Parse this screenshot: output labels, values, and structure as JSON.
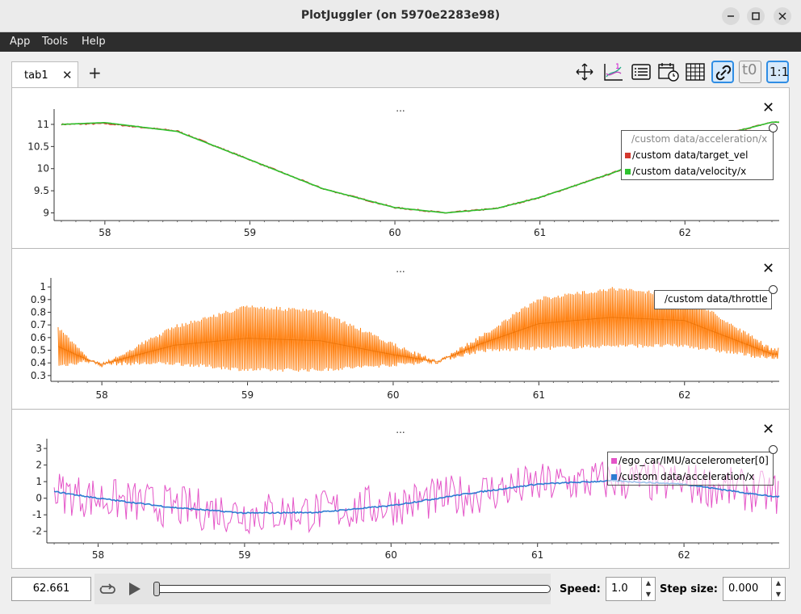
{
  "window": {
    "title": "PlotJuggler (on 5970e2283e98)"
  },
  "menu": {
    "app": "App",
    "tools": "Tools",
    "help": "Help"
  },
  "tabs": {
    "tab1": "tab1",
    "close": "✕",
    "add": "+"
  },
  "toolbar": {
    "t0": "t0",
    "ratio": "1:1",
    "layout_badge": "1"
  },
  "plots": [
    {
      "title": "...",
      "close": "✕",
      "legend_header": "/custom data/acceleration/x",
      "legend": [
        "/custom data/target_vel",
        "/custom data/velocity/x"
      ],
      "colors": [
        "#d3382e",
        "#2ec22e"
      ],
      "yticks": [
        "11",
        "10.5",
        "10",
        "9.5",
        "9"
      ],
      "xticks": [
        "58",
        "59",
        "60",
        "61",
        "62"
      ]
    },
    {
      "title": "...",
      "close": "✕",
      "legend": [
        "/custom data/throttle"
      ],
      "colors": [
        "#ff7f0e"
      ],
      "yticks": [
        "1",
        "0.9",
        "0.8",
        "0.7",
        "0.6",
        "0.5",
        "0.4",
        "0.3"
      ],
      "xticks": [
        "58",
        "59",
        "60",
        "61",
        "62"
      ]
    },
    {
      "title": "...",
      "close": "✕",
      "legend": [
        "/ego_car/IMU/accelerometer[0]",
        "/custom data/acceleration/x"
      ],
      "colors": [
        "#e455c8",
        "#2c7bd1"
      ],
      "yticks": [
        "3",
        "2",
        "1",
        "0",
        "-1",
        "-2"
      ],
      "xticks": [
        "58",
        "59",
        "60",
        "61",
        "62"
      ]
    }
  ],
  "chart_data": [
    {
      "type": "line",
      "x_range": [
        57.65,
        62.65
      ],
      "ylim": [
        8.9,
        11.2
      ],
      "series": [
        {
          "name": "/custom data/target_vel",
          "x": [
            57.7,
            58.0,
            58.5,
            59.0,
            59.5,
            60.0,
            60.35,
            60.7,
            61.0,
            61.5,
            62.0,
            62.6
          ],
          "values": [
            11.0,
            11.02,
            10.85,
            10.2,
            9.55,
            9.12,
            9.0,
            9.1,
            9.35,
            9.9,
            10.55,
            11.05
          ]
        },
        {
          "name": "/custom data/velocity/x",
          "x": [
            57.7,
            58.0,
            58.5,
            59.0,
            59.5,
            60.0,
            60.35,
            60.7,
            61.0,
            61.5,
            62.0,
            62.6
          ],
          "values": [
            11.0,
            11.04,
            10.84,
            10.2,
            9.55,
            9.12,
            9.0,
            9.1,
            9.35,
            9.9,
            10.55,
            11.05
          ]
        }
      ]
    },
    {
      "type": "line",
      "x_range": [
        57.65,
        62.65
      ],
      "ylim": [
        0.28,
        1.02
      ],
      "series": [
        {
          "name": "/custom data/throttle",
          "x": [
            57.7,
            57.9,
            58.0,
            58.5,
            59.0,
            59.5,
            60.0,
            60.3,
            60.6,
            61.0,
            61.5,
            62.0,
            62.6
          ],
          "upper": [
            0.7,
            0.45,
            0.4,
            0.7,
            0.86,
            0.82,
            0.56,
            0.42,
            0.62,
            0.92,
            1.0,
            0.95,
            0.52
          ],
          "lower": [
            0.36,
            0.4,
            0.38,
            0.38,
            0.33,
            0.33,
            0.37,
            0.4,
            0.48,
            0.5,
            0.52,
            0.52,
            0.42
          ]
        }
      ]
    },
    {
      "type": "line",
      "x_range": [
        57.65,
        62.65
      ],
      "ylim": [
        -2.5,
        3.2
      ],
      "series": [
        {
          "name": "/ego_car/IMU/accelerometer[0]",
          "x": [
            57.7,
            58.0,
            58.5,
            59.0,
            59.5,
            60.0,
            60.5,
            61.0,
            61.5,
            62.0,
            62.6
          ],
          "values": [
            0.4,
            0.0,
            -0.5,
            -0.9,
            -0.8,
            -0.4,
            0.2,
            0.8,
            1.1,
            0.9,
            0.3
          ],
          "noise_amplitude": 1.3
        },
        {
          "name": "/custom data/acceleration/x",
          "x": [
            57.7,
            58.0,
            58.5,
            59.0,
            59.5,
            60.0,
            60.5,
            61.0,
            61.5,
            62.0,
            62.6
          ],
          "values": [
            0.4,
            0.0,
            -0.55,
            -0.9,
            -0.85,
            -0.45,
            0.25,
            0.85,
            1.05,
            0.85,
            0.1
          ]
        }
      ]
    }
  ],
  "playback": {
    "time": "62.661",
    "speed_label": "Speed:",
    "speed": "1.0",
    "step_label": "Step size:",
    "step": "0.000"
  }
}
